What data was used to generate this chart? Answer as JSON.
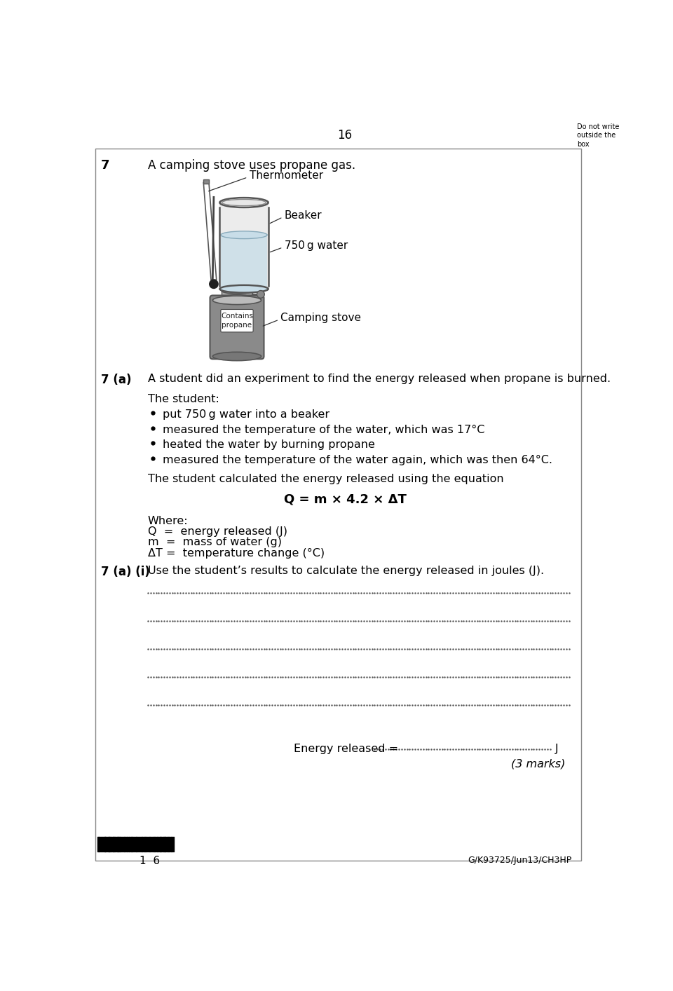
{
  "page_number": "16",
  "do_not_write": "Do not write\noutside the\nbox",
  "question_number": "7",
  "question_text": "A camping stove uses propane gas.",
  "diagram_labels": {
    "thermometer": "Thermometer",
    "beaker": "Beaker",
    "water": "750 g water",
    "stove": "Camping stove",
    "contains": "Contains\npropane"
  },
  "part_a_label": "7 (a)",
  "part_a_text": "A student did an experiment to find the energy released when propane is burned.",
  "student_intro": "The student:",
  "bullet_points": [
    "put 750 g water into a beaker",
    "measured the temperature of the water, which was 17°C",
    "heated the water by burning propane",
    "measured the temperature of the water again, which was then 64°C."
  ],
  "equation_intro": "The student calculated the energy released using the equation",
  "equation": "Q = m × 4.2 × ΔT",
  "where_label": "Where:",
  "where_lines": [
    "Q  =  energy released (J)",
    "m  =  mass of water (g)",
    "ΔT =  temperature change (°C)"
  ],
  "part_ai_label": "7 (a) (i)",
  "part_ai_text": "Use the student’s results to calculate the energy released in joules (J).",
  "dotted_lines": 5,
  "energy_released_label": "Energy released = ",
  "energy_released_unit": "J",
  "marks": "(3 marks)",
  "footer_page": "1  6",
  "footer_code": "G/K93725/Jun13/CH3HP",
  "bg_color": "#ffffff",
  "text_color": "#000000"
}
